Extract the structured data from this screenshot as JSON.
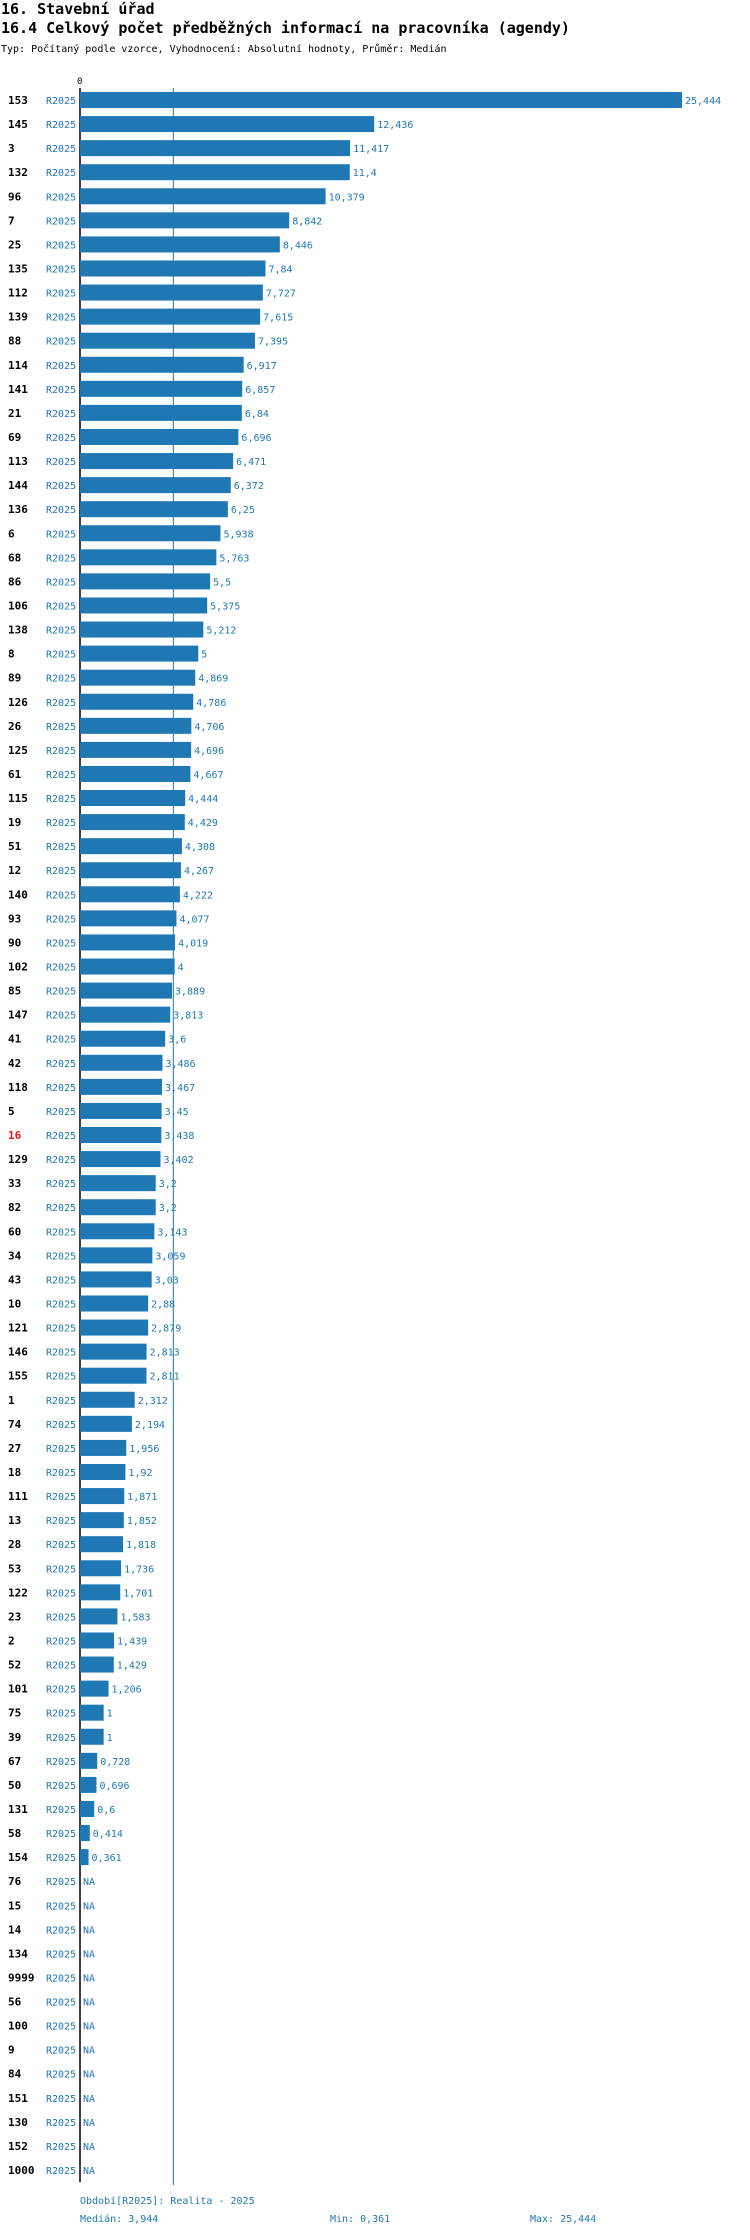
{
  "header": {
    "section": "16. Stavební úřad",
    "title": "16.4 Celkový počet předběžných informací na pracovníka (agendy)",
    "subtitle": "Typ: Počítaný podle vzorce, Vyhodnocení: Absolutní hodnoty, Průměr: Medián"
  },
  "colors": {
    "bar": "#1f77b4",
    "highlight": "#e3191c",
    "text": "#000000"
  },
  "chart_data": {
    "type": "bar",
    "orientation": "horizontal",
    "series_label": "R2025",
    "highlight_category": "16",
    "axis_tick_label": "0",
    "xlim": [
      0,
      25.444
    ],
    "median": 3.944,
    "missing_label": "NA",
    "rows": [
      {
        "id": "153",
        "value": 25.444,
        "label": "25,444"
      },
      {
        "id": "145",
        "value": 12.436,
        "label": "12,436"
      },
      {
        "id": "3",
        "value": 11.417,
        "label": "11,417"
      },
      {
        "id": "132",
        "value": 11.4,
        "label": "11,4"
      },
      {
        "id": "96",
        "value": 10.379,
        "label": "10,379"
      },
      {
        "id": "7",
        "value": 8.842,
        "label": "8,842"
      },
      {
        "id": "25",
        "value": 8.446,
        "label": "8,446"
      },
      {
        "id": "135",
        "value": 7.84,
        "label": "7,84"
      },
      {
        "id": "112",
        "value": 7.727,
        "label": "7,727"
      },
      {
        "id": "139",
        "value": 7.615,
        "label": "7,615"
      },
      {
        "id": "88",
        "value": 7.395,
        "label": "7,395"
      },
      {
        "id": "114",
        "value": 6.917,
        "label": "6,917"
      },
      {
        "id": "141",
        "value": 6.857,
        "label": "6,857"
      },
      {
        "id": "21",
        "value": 6.84,
        "label": "6,84"
      },
      {
        "id": "69",
        "value": 6.696,
        "label": "6,696"
      },
      {
        "id": "113",
        "value": 6.471,
        "label": "6,471"
      },
      {
        "id": "144",
        "value": 6.372,
        "label": "6,372"
      },
      {
        "id": "136",
        "value": 6.25,
        "label": "6,25"
      },
      {
        "id": "6",
        "value": 5.938,
        "label": "5,938"
      },
      {
        "id": "68",
        "value": 5.763,
        "label": "5,763"
      },
      {
        "id": "86",
        "value": 5.5,
        "label": "5,5"
      },
      {
        "id": "106",
        "value": 5.375,
        "label": "5,375"
      },
      {
        "id": "138",
        "value": 5.212,
        "label": "5,212"
      },
      {
        "id": "8",
        "value": 5,
        "label": "5"
      },
      {
        "id": "89",
        "value": 4.869,
        "label": "4,869"
      },
      {
        "id": "126",
        "value": 4.786,
        "label": "4,786"
      },
      {
        "id": "26",
        "value": 4.706,
        "label": "4,706"
      },
      {
        "id": "125",
        "value": 4.696,
        "label": "4,696"
      },
      {
        "id": "61",
        "value": 4.667,
        "label": "4,667"
      },
      {
        "id": "115",
        "value": 4.444,
        "label": "4,444"
      },
      {
        "id": "19",
        "value": 4.429,
        "label": "4,429"
      },
      {
        "id": "51",
        "value": 4.308,
        "label": "4,308"
      },
      {
        "id": "12",
        "value": 4.267,
        "label": "4,267"
      },
      {
        "id": "140",
        "value": 4.222,
        "label": "4,222"
      },
      {
        "id": "93",
        "value": 4.077,
        "label": "4,077"
      },
      {
        "id": "90",
        "value": 4.019,
        "label": "4,019"
      },
      {
        "id": "102",
        "value": 4,
        "label": "4"
      },
      {
        "id": "85",
        "value": 3.889,
        "label": "3,889"
      },
      {
        "id": "147",
        "value": 3.813,
        "label": "3,813"
      },
      {
        "id": "41",
        "value": 3.6,
        "label": "3,6"
      },
      {
        "id": "42",
        "value": 3.486,
        "label": "3,486"
      },
      {
        "id": "118",
        "value": 3.467,
        "label": "3,467"
      },
      {
        "id": "5",
        "value": 3.45,
        "label": "3,45"
      },
      {
        "id": "16",
        "value": 3.438,
        "label": "3,438"
      },
      {
        "id": "129",
        "value": 3.402,
        "label": "3,402"
      },
      {
        "id": "33",
        "value": 3.2,
        "label": "3,2"
      },
      {
        "id": "82",
        "value": 3.2,
        "label": "3,2"
      },
      {
        "id": "60",
        "value": 3.143,
        "label": "3,143"
      },
      {
        "id": "34",
        "value": 3.059,
        "label": "3,059"
      },
      {
        "id": "43",
        "value": 3.03,
        "label": "3,03"
      },
      {
        "id": "10",
        "value": 2.88,
        "label": "2,88"
      },
      {
        "id": "121",
        "value": 2.879,
        "label": "2,879"
      },
      {
        "id": "146",
        "value": 2.813,
        "label": "2,813"
      },
      {
        "id": "155",
        "value": 2.811,
        "label": "2,811"
      },
      {
        "id": "1",
        "value": 2.312,
        "label": "2,312"
      },
      {
        "id": "74",
        "value": 2.194,
        "label": "2,194"
      },
      {
        "id": "27",
        "value": 1.956,
        "label": "1,956"
      },
      {
        "id": "18",
        "value": 1.92,
        "label": "1,92"
      },
      {
        "id": "111",
        "value": 1.871,
        "label": "1,871"
      },
      {
        "id": "13",
        "value": 1.852,
        "label": "1,852"
      },
      {
        "id": "28",
        "value": 1.818,
        "label": "1,818"
      },
      {
        "id": "53",
        "value": 1.736,
        "label": "1,736"
      },
      {
        "id": "122",
        "value": 1.701,
        "label": "1,701"
      },
      {
        "id": "23",
        "value": 1.583,
        "label": "1,583"
      },
      {
        "id": "2",
        "value": 1.439,
        "label": "1,439"
      },
      {
        "id": "52",
        "value": 1.429,
        "label": "1,429"
      },
      {
        "id": "101",
        "value": 1.206,
        "label": "1,206"
      },
      {
        "id": "75",
        "value": 1,
        "label": "1"
      },
      {
        "id": "39",
        "value": 1,
        "label": "1"
      },
      {
        "id": "67",
        "value": 0.728,
        "label": "0,728"
      },
      {
        "id": "50",
        "value": 0.696,
        "label": "0,696"
      },
      {
        "id": "131",
        "value": 0.6,
        "label": "0,6"
      },
      {
        "id": "58",
        "value": 0.414,
        "label": "0,414"
      },
      {
        "id": "154",
        "value": 0.361,
        "label": "0,361"
      },
      {
        "id": "76",
        "value": null,
        "label": "NA"
      },
      {
        "id": "15",
        "value": null,
        "label": "NA"
      },
      {
        "id": "14",
        "value": null,
        "label": "NA"
      },
      {
        "id": "134",
        "value": null,
        "label": "NA"
      },
      {
        "id": "9999",
        "value": null,
        "label": "NA"
      },
      {
        "id": "56",
        "value": null,
        "label": "NA"
      },
      {
        "id": "100",
        "value": null,
        "label": "NA"
      },
      {
        "id": "9",
        "value": null,
        "label": "NA"
      },
      {
        "id": "84",
        "value": null,
        "label": "NA"
      },
      {
        "id": "151",
        "value": null,
        "label": "NA"
      },
      {
        "id": "130",
        "value": null,
        "label": "NA"
      },
      {
        "id": "152",
        "value": null,
        "label": "NA"
      },
      {
        "id": "1000",
        "value": null,
        "label": "NA"
      }
    ]
  },
  "footer": {
    "period": "Období[R2025]: Realita - 2025",
    "median": "Medián: 3,944",
    "min": "Min: 0,361",
    "max": "Max: 25,444"
  }
}
